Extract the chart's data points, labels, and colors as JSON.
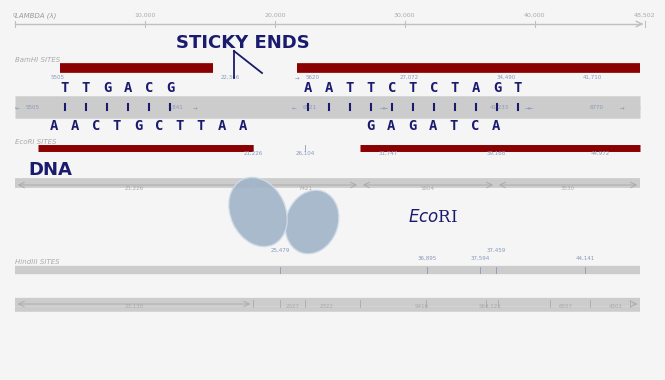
{
  "bg_color": "#f5f5f5",
  "dark_red": "#8b0000",
  "dark_blue": "#1a1a6e",
  "light_blue_shape": "#a0b4c8",
  "axis_color": "#c0c0c0",
  "num_blue": "#8899bb",
  "label_gray": "#aaaaaa",
  "strand_gray": "#cccccc",
  "lambda_label": "LAMBDA (λ)",
  "bamhi_label": "BamHI SITES",
  "ecori_label_sites": "EcoRI SITES",
  "hindiii_label": "HindIII SITES",
  "dna_label": "DNA",
  "title": "STICKY ENDS",
  "lambda_ticks": [
    0,
    10000,
    20000,
    30000,
    40000,
    48502
  ],
  "lambda_tick_labels": [
    "0",
    "10,000",
    "20,000",
    "30,000",
    "40,000",
    "48,502"
  ],
  "seq_top_left": [
    "T",
    "T",
    "G",
    "A",
    "C",
    "G"
  ],
  "seq_bot_left": [
    "A",
    "A",
    "C",
    "T",
    "G",
    "C",
    "T",
    "T",
    "A",
    "A"
  ],
  "seq_top_right": [
    "A",
    "A",
    "T",
    "T",
    "C",
    "T",
    "C",
    "T",
    "A",
    "G",
    "T"
  ],
  "seq_bot_right": [
    "G",
    "A",
    "G",
    "A",
    "T",
    "C",
    "A"
  ]
}
